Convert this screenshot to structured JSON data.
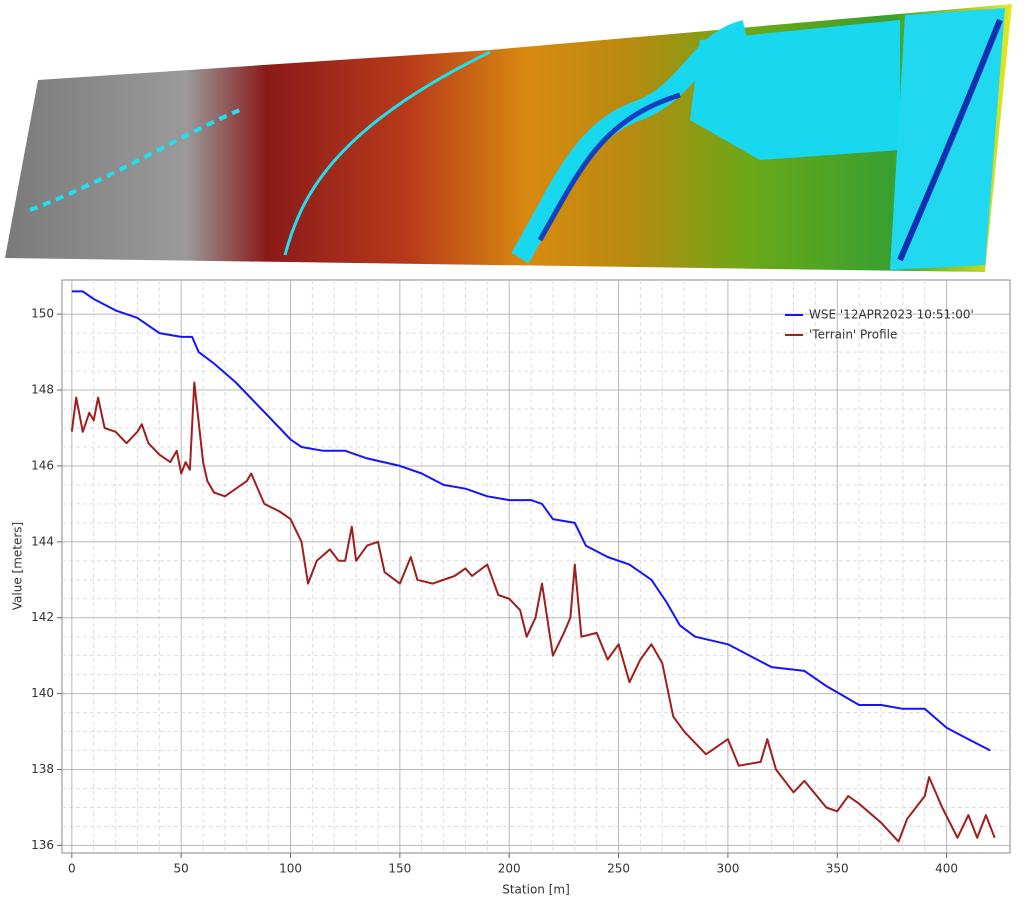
{
  "chart_data": {
    "type": "line",
    "xlabel": "Station [m]",
    "ylabel": "Value [meters]",
    "xlim": [
      -4.5,
      429
    ],
    "ylim": [
      135.8,
      150.9
    ],
    "xticks": [
      0,
      50,
      100,
      150,
      200,
      250,
      300,
      350,
      400
    ],
    "yticks": [
      136,
      138,
      140,
      142,
      144,
      146,
      148,
      150
    ],
    "grid": true,
    "legend": "upper right",
    "series": [
      {
        "name": "WSE '12APR2023 10:51:00'",
        "color": "#1414ff",
        "x": [
          0,
          5,
          10,
          20,
          30,
          40,
          50,
          55,
          58,
          65,
          75,
          85,
          95,
          100,
          105,
          115,
          125,
          135,
          150,
          160,
          170,
          180,
          190,
          200,
          210,
          215,
          220,
          230,
          235,
          245,
          255,
          265,
          272,
          278,
          285,
          300,
          310,
          320,
          335,
          345,
          360,
          370,
          380,
          390,
          400,
          410,
          420
        ],
        "values": [
          150.6,
          150.6,
          150.4,
          150.1,
          149.9,
          149.5,
          149.4,
          149.4,
          149.0,
          148.7,
          148.2,
          147.6,
          147.0,
          146.7,
          146.5,
          146.4,
          146.4,
          146.2,
          146.0,
          145.8,
          145.5,
          145.4,
          145.2,
          145.1,
          145.1,
          145.0,
          144.6,
          144.5,
          143.9,
          143.6,
          143.4,
          143.0,
          142.4,
          141.8,
          141.5,
          141.3,
          141.0,
          140.7,
          140.6,
          140.2,
          139.7,
          139.7,
          139.6,
          139.6,
          139.1,
          138.8,
          138.5
        ]
      },
      {
        "name": "'Terrain' Profile",
        "color": "#a01e1e",
        "x": [
          0,
          2,
          5,
          8,
          10,
          12,
          15,
          20,
          25,
          30,
          32,
          35,
          40,
          45,
          48,
          50,
          52,
          54,
          56,
          60,
          62,
          65,
          70,
          75,
          80,
          82,
          88,
          95,
          100,
          105,
          108,
          112,
          118,
          122,
          125,
          128,
          130,
          135,
          140,
          143,
          150,
          155,
          158,
          165,
          175,
          180,
          183,
          190,
          195,
          200,
          205,
          208,
          212,
          215,
          220,
          225,
          228,
          230,
          233,
          240,
          245,
          250,
          255,
          260,
          265,
          270,
          275,
          280,
          290,
          295,
          300,
          305,
          315,
          318,
          322,
          330,
          335,
          345,
          350,
          355,
          360,
          370,
          378,
          382,
          390,
          392,
          398,
          405,
          410,
          414,
          418,
          422
        ],
        "values": [
          146.9,
          147.8,
          146.9,
          147.4,
          147.2,
          147.8,
          147.0,
          146.9,
          146.6,
          146.9,
          147.1,
          146.6,
          146.3,
          146.1,
          146.4,
          145.8,
          146.1,
          145.9,
          148.2,
          146.1,
          145.6,
          145.3,
          145.2,
          145.4,
          145.6,
          145.8,
          145.0,
          144.8,
          144.6,
          144.0,
          142.9,
          143.5,
          143.8,
          143.5,
          143.5,
          144.4,
          143.5,
          143.9,
          144.0,
          143.2,
          142.9,
          143.6,
          143.0,
          142.9,
          143.1,
          143.3,
          143.1,
          143.4,
          142.6,
          142.5,
          142.2,
          141.5,
          142.0,
          142.9,
          141.0,
          141.6,
          142.0,
          143.4,
          141.5,
          141.6,
          140.9,
          141.3,
          140.3,
          140.9,
          141.3,
          140.8,
          139.4,
          139.0,
          138.4,
          138.6,
          138.8,
          138.1,
          138.2,
          138.8,
          138.0,
          137.4,
          137.7,
          137.0,
          136.9,
          137.3,
          137.1,
          136.6,
          136.1,
          136.7,
          137.3,
          137.8,
          137.0,
          136.2,
          136.8,
          136.2,
          136.8,
          136.2
        ]
      }
    ]
  }
}
